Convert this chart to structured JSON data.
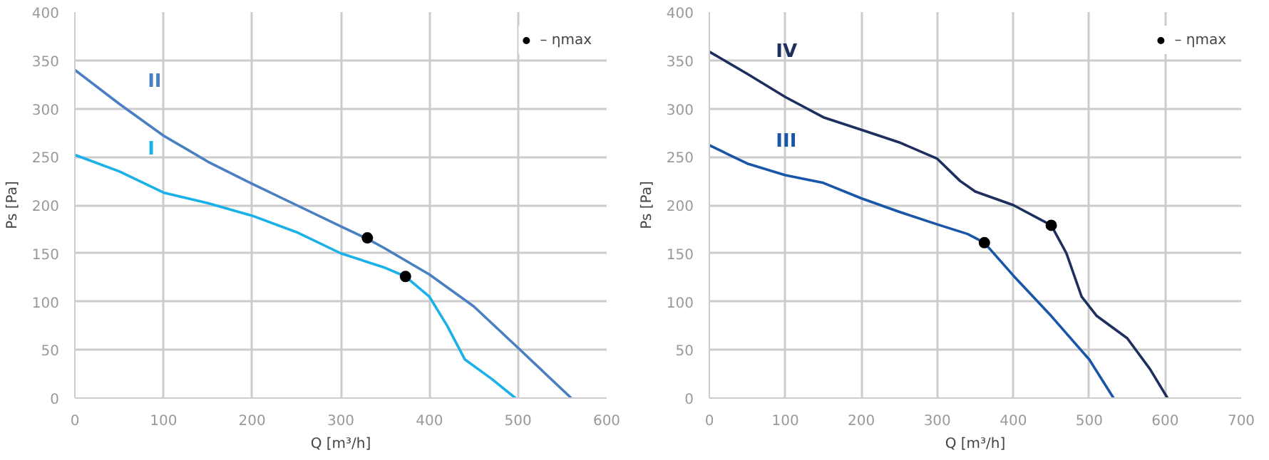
{
  "chart_data": [
    {
      "type": "line",
      "xlabel": "Q [m³/h]",
      "ylabel": "Ps [Pa]",
      "xlim": [
        0,
        600
      ],
      "ylim": [
        0,
        400
      ],
      "xticks": [
        0,
        100,
        200,
        300,
        400,
        500,
        600
      ],
      "yticks": [
        0,
        50,
        100,
        150,
        200,
        250,
        300,
        350,
        400
      ],
      "grid": true,
      "legend": "top right",
      "series": [
        {
          "name": "II",
          "color": "#4a7fc1",
          "x": [
            0,
            50,
            100,
            150,
            200,
            250,
            300,
            330,
            350,
            400,
            450,
            500,
            560
          ],
          "values": [
            340,
            305,
            272,
            245,
            222,
            200,
            178,
            165,
            155,
            128,
            95,
            52,
            0
          ]
        },
        {
          "name": "I",
          "color": "#1ab0e8",
          "x": [
            0,
            50,
            100,
            150,
            200,
            250,
            300,
            350,
            373,
            400,
            420,
            440,
            470,
            497
          ],
          "values": [
            252,
            235,
            213,
            202,
            189,
            172,
            150,
            135,
            126,
            105,
            75,
            40,
            20,
            0
          ]
        },
        {
          "name": "– ηmax",
          "type": "scatter",
          "marker": "circle",
          "color": "#000000",
          "x": [
            330,
            373
          ],
          "values": [
            166,
            126
          ]
        }
      ]
    },
    {
      "type": "line",
      "xlabel": "Q [m³/h]",
      "ylabel": "Ps [Pa]",
      "xlim": [
        0,
        700
      ],
      "ylim": [
        0,
        400
      ],
      "xticks": [
        0,
        100,
        200,
        300,
        400,
        500,
        600,
        700
      ],
      "yticks": [
        0,
        50,
        100,
        150,
        200,
        250,
        300,
        350,
        400
      ],
      "grid": true,
      "legend": "top right",
      "series": [
        {
          "name": "IV",
          "color": "#1e2f5e",
          "x": [
            0,
            50,
            100,
            150,
            200,
            250,
            300,
            330,
            350,
            400,
            450,
            470,
            490,
            510,
            550,
            580,
            603
          ],
          "values": [
            359,
            336,
            312,
            291,
            278,
            265,
            248,
            225,
            214,
            200,
            179,
            150,
            105,
            85,
            62,
            30,
            0
          ]
        },
        {
          "name": "III",
          "color": "#1a56a8",
          "x": [
            0,
            50,
            100,
            150,
            200,
            250,
            300,
            340,
            362,
            400,
            450,
            500,
            532
          ],
          "values": [
            262,
            243,
            231,
            223,
            207,
            193,
            180,
            170,
            161,
            127,
            85,
            40,
            0
          ]
        },
        {
          "name": "– ηmax",
          "type": "scatter",
          "marker": "circle",
          "color": "#000000",
          "x": [
            450,
            362
          ],
          "values": [
            179,
            161
          ]
        }
      ]
    }
  ]
}
